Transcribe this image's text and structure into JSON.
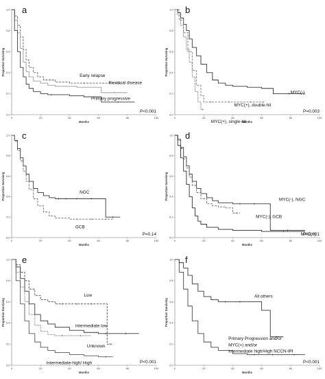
{
  "chart_data": [
    {
      "type": "line",
      "panel": "a",
      "xlabel": "Months",
      "ylabel": "Proportion Surviving",
      "xlim": [
        0,
        100
      ],
      "ylim": [
        0,
        1
      ],
      "x_ticks": [
        "0",
        "20",
        "40",
        "60",
        "80",
        "100"
      ],
      "y_ticks": [
        "0.0",
        "0.2",
        "0.4",
        "0.6",
        "0.8",
        "1.0"
      ],
      "p_value": "P<0.001",
      "series": [
        {
          "name": "Early relapse",
          "style": "dashed",
          "color": "#5a5a5a",
          "x": [
            0,
            2,
            4,
            6,
            8,
            10,
            12,
            15,
            18,
            22,
            30,
            40,
            60,
            75
          ],
          "y": [
            1.0,
            0.94,
            0.85,
            0.74,
            0.62,
            0.52,
            0.45,
            0.4,
            0.36,
            0.33,
            0.31,
            0.3,
            0.3,
            0.3
          ]
        },
        {
          "name": "Residual disease",
          "style": "solid",
          "color": "#9a9a9a",
          "x": [
            0,
            2,
            4,
            6,
            8,
            10,
            12,
            15,
            20,
            25,
            30,
            45,
            62,
            80
          ],
          "y": [
            1.0,
            0.9,
            0.78,
            0.63,
            0.5,
            0.41,
            0.36,
            0.32,
            0.3,
            0.28,
            0.27,
            0.26,
            0.21,
            0.21
          ]
        },
        {
          "name": "Primary progressive",
          "style": "solid",
          "color": "#3a3a3a",
          "x": [
            0,
            2,
            4,
            6,
            8,
            10,
            12,
            15,
            20,
            25,
            30,
            40,
            50,
            62,
            85
          ],
          "y": [
            1.0,
            0.8,
            0.6,
            0.45,
            0.36,
            0.29,
            0.25,
            0.22,
            0.2,
            0.19,
            0.19,
            0.18,
            0.17,
            0.12,
            0.12
          ]
        }
      ],
      "annotations": [
        {
          "text": "Early relapse",
          "x": 47,
          "y": 0.36
        },
        {
          "text": "Residual disease",
          "x": 67,
          "y": 0.29
        },
        {
          "text": "Primary progressive",
          "x": 55,
          "y": 0.14
        }
      ]
    },
    {
      "type": "line",
      "panel": "b",
      "xlabel": "Months",
      "ylabel": "Proportion Surviving",
      "xlim": [
        0,
        100
      ],
      "ylim": [
        0,
        1
      ],
      "x_ticks": [
        "0",
        "20",
        "40",
        "60",
        "80",
        "100"
      ],
      "y_ticks": [
        "0.0",
        "0.2",
        "0.4",
        "0.6",
        "0.8",
        "1.0"
      ],
      "p_value": "P=0.003",
      "series": [
        {
          "name": "MYC(-)",
          "style": "solid",
          "color": "#333333",
          "x": [
            0,
            2,
            4,
            6,
            8,
            10,
            12,
            15,
            18,
            22,
            26,
            30,
            35,
            40,
            50,
            60,
            68,
            90
          ],
          "y": [
            1.0,
            0.97,
            0.92,
            0.86,
            0.8,
            0.72,
            0.64,
            0.56,
            0.48,
            0.4,
            0.33,
            0.3,
            0.28,
            0.27,
            0.26,
            0.25,
            0.2,
            0.2
          ]
        },
        {
          "name": "MYC(+), double-hit",
          "style": "dotted",
          "color": "#444444",
          "x": [
            0,
            2,
            4,
            6,
            8,
            10,
            12,
            14,
            16,
            18,
            20
          ],
          "y": [
            1.0,
            0.95,
            0.85,
            0.74,
            0.62,
            0.5,
            0.36,
            0.22,
            0.12,
            0.05,
            0.05
          ]
        },
        {
          "name": "MYC(+), single-hit",
          "style": "dashed",
          "color": "#777777",
          "x": [
            0,
            3,
            6,
            9,
            12,
            15,
            18,
            20,
            30,
            45,
            60,
            62
          ],
          "y": [
            1.0,
            0.9,
            0.78,
            0.6,
            0.42,
            0.28,
            0.18,
            0.12,
            0.12,
            0.12,
            0.12,
            0.12
          ]
        }
      ],
      "annotations": [
        {
          "text": "MYC(-)",
          "x": 80,
          "y": 0.2
        },
        {
          "text": "MYC(+), double-hit",
          "x": 41,
          "y": 0.08
        },
        {
          "text": "MYC(+), single-hit",
          "x": 25,
          "y": -0.08
        }
      ]
    },
    {
      "type": "line",
      "panel": "c",
      "xlabel": "Months",
      "ylabel": "Proportion Surviving",
      "xlim": [
        0,
        100
      ],
      "ylim": [
        0,
        1
      ],
      "x_ticks": [
        "0",
        "20",
        "40",
        "60",
        "80",
        "100"
      ],
      "y_ticks": [
        "0.0",
        "0.2",
        "0.4",
        "0.6",
        "0.8",
        "1.0"
      ],
      "p_value": "P=0.14",
      "series": [
        {
          "name": "NGC",
          "style": "solid",
          "color": "#333333",
          "x": [
            0,
            2,
            4,
            6,
            8,
            10,
            12,
            15,
            18,
            22,
            26,
            30,
            35,
            40,
            50,
            60,
            65,
            75
          ],
          "y": [
            1.0,
            0.95,
            0.87,
            0.78,
            0.7,
            0.62,
            0.55,
            0.48,
            0.44,
            0.41,
            0.39,
            0.38,
            0.38,
            0.38,
            0.38,
            0.38,
            0.2,
            0.2
          ]
        },
        {
          "name": "GCB",
          "style": "dashed",
          "color": "#666666",
          "x": [
            0,
            2,
            4,
            6,
            8,
            10,
            12,
            15,
            18,
            22,
            26,
            30,
            40,
            50,
            60,
            70
          ],
          "y": [
            1.0,
            0.94,
            0.85,
            0.75,
            0.65,
            0.55,
            0.47,
            0.38,
            0.31,
            0.25,
            0.21,
            0.19,
            0.18,
            0.18,
            0.18,
            0.18
          ]
        }
      ],
      "annotations": [
        {
          "text": "NGC",
          "x": 47,
          "y": 0.43
        },
        {
          "text": "GCB",
          "x": 44,
          "y": 0.09
        }
      ]
    },
    {
      "type": "line",
      "panel": "d",
      "xlabel": "Months",
      "ylabel": "Proportion Surviving",
      "xlim": [
        0,
        100
      ],
      "ylim": [
        0,
        1
      ],
      "x_ticks": [
        "0",
        "20",
        "40",
        "60",
        "80",
        "100"
      ],
      "y_ticks": [
        "0.0",
        "0.2",
        "0.4",
        "0.6",
        "0.8",
        "1.0"
      ],
      "p_value": "P<0.001",
      "series": [
        {
          "name": "MYC(-), NGC",
          "style": "solid",
          "color": "#333333",
          "x": [
            0,
            2,
            4,
            6,
            8,
            10,
            12,
            15,
            18,
            22,
            26,
            30,
            40,
            50,
            60,
            66,
            90
          ],
          "y": [
            1.0,
            0.96,
            0.88,
            0.79,
            0.7,
            0.62,
            0.55,
            0.48,
            0.43,
            0.39,
            0.36,
            0.34,
            0.33,
            0.33,
            0.33,
            0.07,
            0.07
          ]
        },
        {
          "name": "MYC(-), GCB",
          "style": "dashed",
          "color": "#666666",
          "x": [
            0,
            2,
            4,
            6,
            8,
            10,
            12,
            15,
            18,
            22,
            26,
            30,
            35,
            40,
            45
          ],
          "y": [
            1.0,
            0.95,
            0.87,
            0.77,
            0.68,
            0.59,
            0.51,
            0.44,
            0.38,
            0.33,
            0.31,
            0.3,
            0.29,
            0.24,
            0.24
          ]
        },
        {
          "name": "MYC(+)",
          "style": "solid",
          "color": "#2a2a2a",
          "x": [
            0,
            2,
            4,
            6,
            8,
            10,
            12,
            14,
            16,
            18,
            22,
            30,
            40,
            60,
            90
          ],
          "y": [
            1.0,
            0.9,
            0.78,
            0.65,
            0.52,
            0.4,
            0.29,
            0.21,
            0.16,
            0.13,
            0.1,
            0.08,
            0.07,
            0.06,
            0.06
          ]
        }
      ],
      "annotations": [
        {
          "text": "MYC(-), NGC",
          "x": 72,
          "y": 0.36
        },
        {
          "text": "MYC(-), GCB",
          "x": 56,
          "y": 0.19
        },
        {
          "text": "MYC(+)",
          "x": 87,
          "y": 0.02
        }
      ]
    },
    {
      "type": "line",
      "panel": "e",
      "xlabel": "Months",
      "ylabel": "Proportion Surviving",
      "xlim": [
        0,
        100
      ],
      "ylim": [
        0,
        1
      ],
      "x_ticks": [
        "0",
        "20",
        "40",
        "60",
        "80",
        "100"
      ],
      "y_ticks": [
        "0.0",
        "0.2",
        "0.4",
        "0.6",
        "0.8",
        "1.0"
      ],
      "p_value": "P<0.001",
      "series": [
        {
          "name": "Low",
          "style": "dashed",
          "color": "#444444",
          "x": [
            0,
            3,
            6,
            9,
            12,
            16,
            20,
            25,
            30,
            40,
            50,
            60,
            66,
            70
          ],
          "y": [
            1.0,
            0.95,
            0.88,
            0.8,
            0.72,
            0.66,
            0.62,
            0.6,
            0.58,
            0.58,
            0.58,
            0.58,
            0.2,
            0.2
          ]
        },
        {
          "name": "Intermediate low",
          "style": "solid",
          "color": "#333333",
          "x": [
            0,
            3,
            6,
            9,
            12,
            16,
            20,
            25,
            30,
            40,
            50,
            60,
            70,
            88
          ],
          "y": [
            1.0,
            0.93,
            0.82,
            0.7,
            0.58,
            0.48,
            0.42,
            0.39,
            0.36,
            0.33,
            0.31,
            0.3,
            0.3,
            0.3
          ]
        },
        {
          "name": "Unknown",
          "style": "dotted",
          "color": "#555555",
          "x": [
            0,
            3,
            6,
            9,
            12,
            16,
            20,
            25,
            30,
            40,
            55
          ],
          "y": [
            1.0,
            0.88,
            0.74,
            0.6,
            0.48,
            0.38,
            0.32,
            0.29,
            0.28,
            0.28,
            0.28
          ]
        },
        {
          "name": "Intermediate-high/ High",
          "style": "solid",
          "color": "#555555",
          "x": [
            0,
            3,
            6,
            9,
            12,
            16,
            20,
            25,
            30,
            40,
            50,
            60,
            70
          ],
          "y": [
            1.0,
            0.8,
            0.58,
            0.42,
            0.3,
            0.22,
            0.17,
            0.14,
            0.12,
            0.1,
            0.09,
            0.08,
            0.08
          ]
        }
      ],
      "annotations": [
        {
          "text": "Low",
          "x": 50,
          "y": 0.65
        },
        {
          "text": "Intermediate low",
          "x": 44,
          "y": 0.36
        },
        {
          "text": "Unknown",
          "x": 52,
          "y": 0.17
        },
        {
          "text": "Intermediate-high/ High",
          "x": 24,
          "y": 0.01
        }
      ]
    },
    {
      "type": "line",
      "panel": "f",
      "xlabel": "Months",
      "ylabel": "Proportion Surviving",
      "xlim": [
        0,
        100
      ],
      "ylim": [
        0,
        1
      ],
      "x_ticks": [
        "0",
        "20",
        "40",
        "60",
        "80",
        "100"
      ],
      "y_ticks": [
        "0.0",
        "0.2",
        "0.4",
        "0.6",
        "0.8",
        "1.0"
      ],
      "p_value": "P<0.001",
      "series": [
        {
          "name": "All others",
          "style": "solid",
          "color": "#333333",
          "x": [
            0,
            3,
            6,
            9,
            12,
            16,
            20,
            25,
            30,
            40,
            50,
            60,
            66,
            75
          ],
          "y": [
            1.0,
            0.97,
            0.92,
            0.85,
            0.77,
            0.7,
            0.65,
            0.62,
            0.6,
            0.6,
            0.6,
            0.52,
            0.27,
            0.27
          ]
        },
        {
          "name": "Primary Progression and/or MYC(+) and/or Intermediate high/High NCCN-IPI",
          "style": "solid",
          "color": "#444444",
          "x": [
            0,
            3,
            6,
            9,
            12,
            16,
            20,
            25,
            30,
            40,
            50,
            60,
            75,
            90
          ],
          "y": [
            1.0,
            0.88,
            0.72,
            0.56,
            0.42,
            0.3,
            0.22,
            0.17,
            0.14,
            0.11,
            0.1,
            0.1,
            0.1,
            0.1
          ]
        }
      ],
      "annotations": [
        {
          "text": "All others",
          "x": 55,
          "y": 0.64
        },
        {
          "text": "Primary Progression and/or",
          "x": 37,
          "y": 0.24
        },
        {
          "text": "MYC(+) and/or",
          "x": 37,
          "y": 0.18
        },
        {
          "text": "Intermediate high/High NCCN-IPI",
          "x": 37,
          "y": 0.12
        }
      ]
    }
  ]
}
